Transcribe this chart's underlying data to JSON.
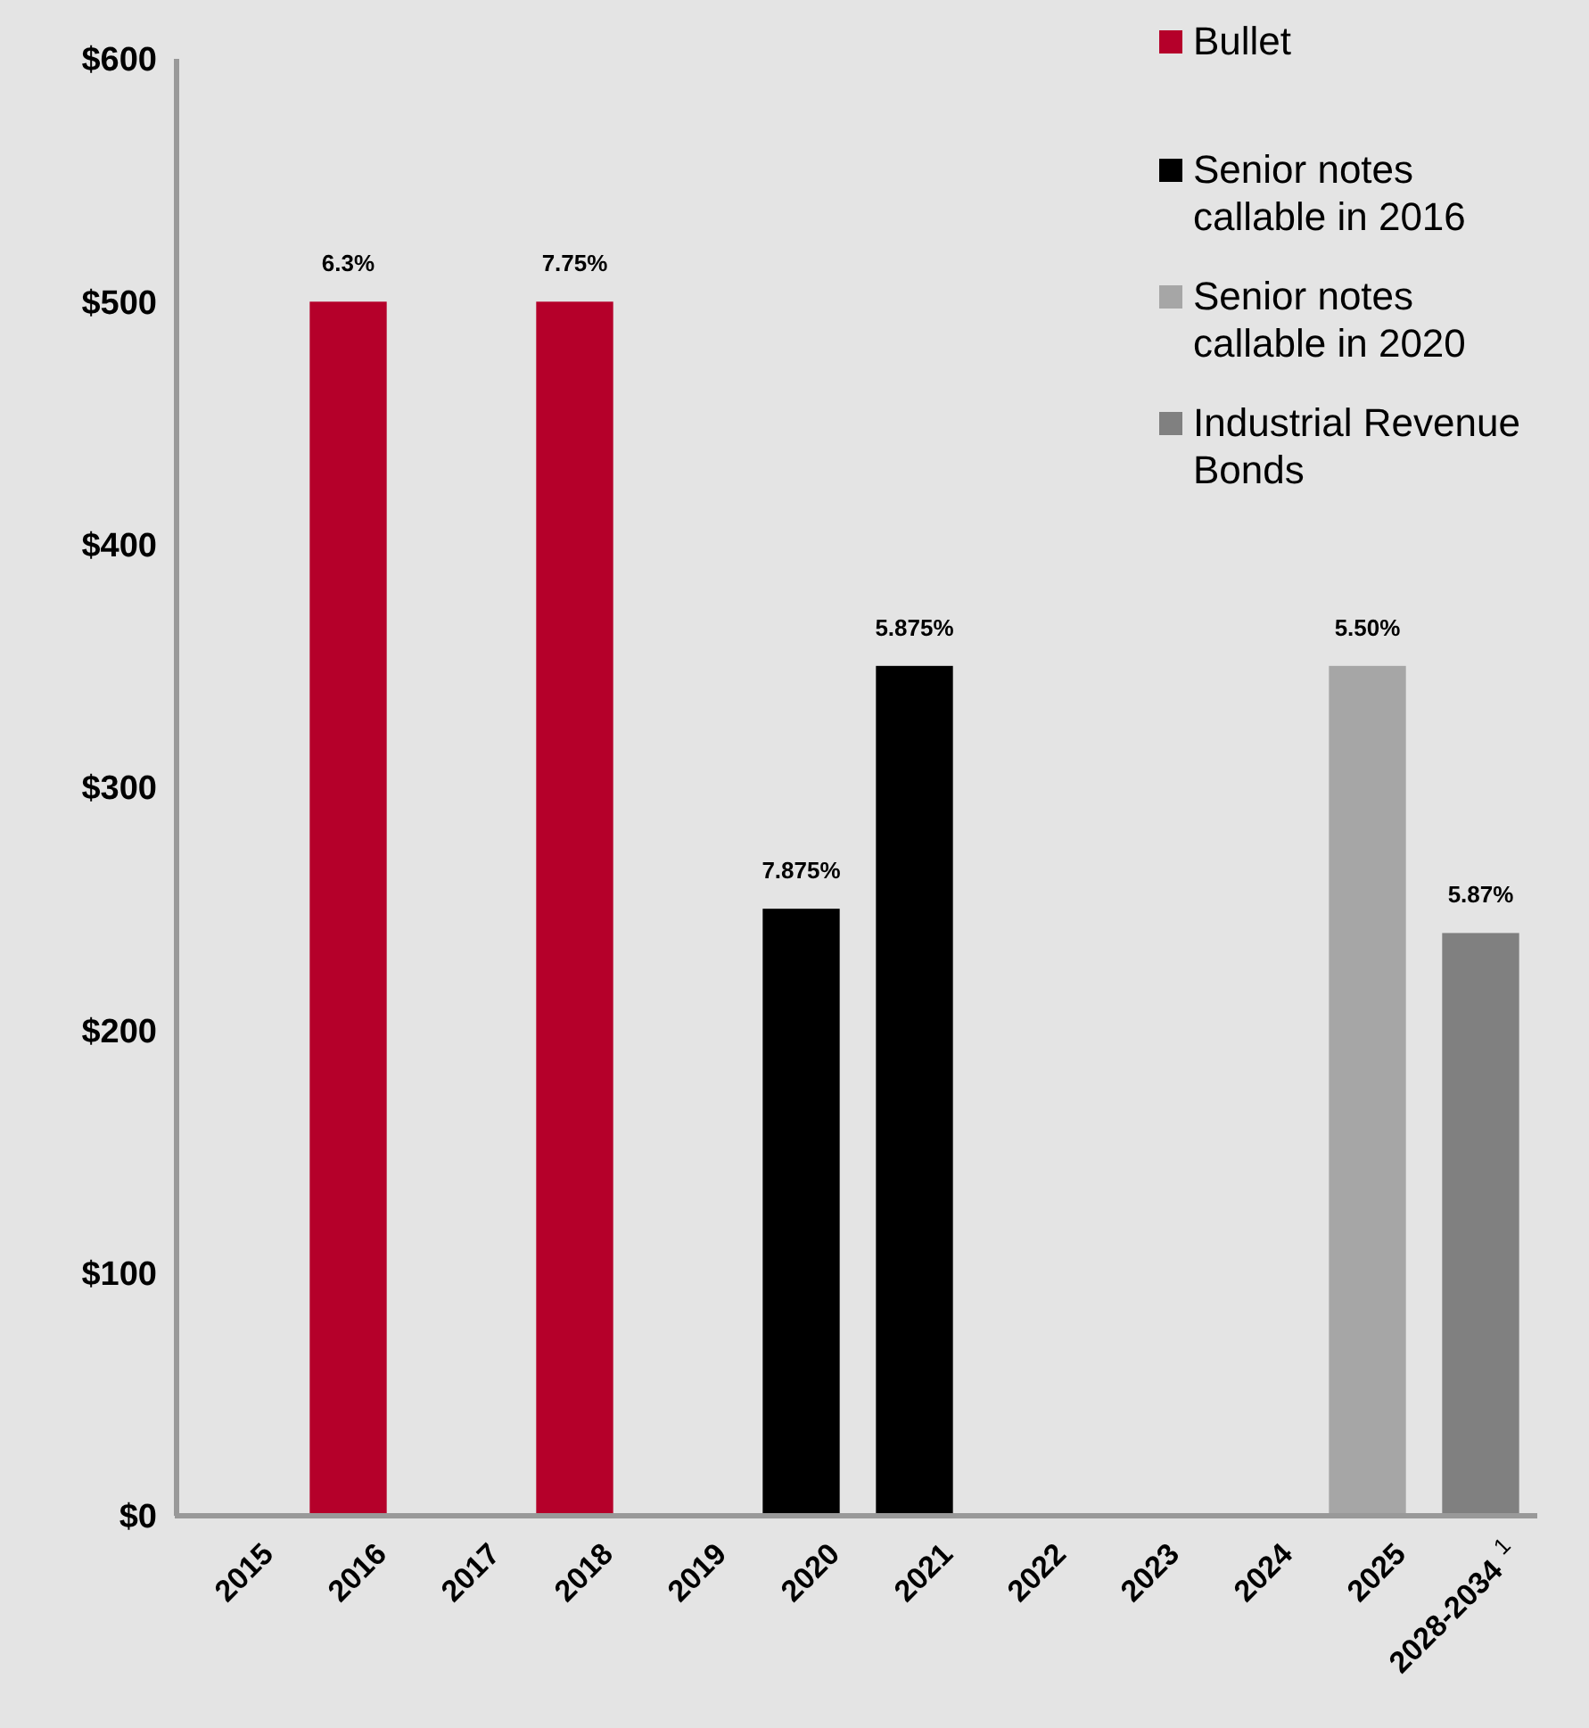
{
  "chart_data": {
    "type": "bar",
    "stacked": true,
    "categories": [
      "2015",
      "2016",
      "2017",
      "2018",
      "2019",
      "2020",
      "2021",
      "2022",
      "2023",
      "2024",
      "2025",
      "2028-2034$^{1}$"
    ],
    "series": [
      {
        "name": "Bullet",
        "color": "#b5002a",
        "values": [
          null,
          500,
          null,
          500,
          null,
          null,
          null,
          null,
          null,
          null,
          null,
          null
        ]
      },
      {
        "name": "Senior notes callable in 2016",
        "color": "#000000",
        "values": [
          null,
          null,
          null,
          null,
          null,
          250,
          350,
          null,
          null,
          null,
          null,
          null
        ]
      },
      {
        "name": "Senior notes callable in 2020",
        "color": "#a6a6a6",
        "values": [
          null,
          null,
          null,
          null,
          null,
          null,
          null,
          null,
          null,
          null,
          350,
          null
        ]
      },
      {
        "name": "Industrial Revenue Bonds",
        "color": "#808080",
        "values": [
          null,
          null,
          null,
          null,
          null,
          null,
          null,
          null,
          null,
          null,
          null,
          240
        ]
      }
    ],
    "annotations": [
      {
        "text": "6.3%",
        "x": "2016",
        "y": 500
      },
      {
        "text": "7.75%",
        "x": "2018",
        "y": 500
      },
      {
        "text": "7.875%",
        "x": "2020",
        "y": 250
      },
      {
        "text": "5.875%",
        "x": "2021",
        "y": 350
      },
      {
        "text": "5.50%",
        "x": "2025",
        "y": 350
      },
      {
        "text": "5.87%",
        "x": "2028-2034$^{1}$",
        "y": 240
      }
    ],
    "ylim": [
      0,
      600
    ],
    "yticks": [
      {
        "value": 0,
        "label": "$0"
      },
      {
        "value": 100,
        "label": "$100"
      },
      {
        "value": 200,
        "label": "$200"
      },
      {
        "value": 300,
        "label": "$300"
      },
      {
        "value": 400,
        "label": "$400"
      },
      {
        "value": 500,
        "label": "$500"
      },
      {
        "value": 600,
        "label": "$600"
      }
    ],
    "grid": false,
    "legend": "top right"
  }
}
